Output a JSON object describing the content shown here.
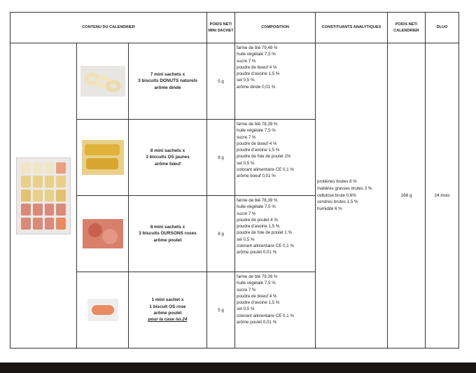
{
  "headers": {
    "contenu": "CONTENU DU CALENDRIER",
    "poids_sachet": "POIDS NET/ MINI SACHET",
    "composition": "COMPOSITION",
    "constituants": "CONSTITUANTS ANALYTIQUES",
    "poids_calendrier": "POIDS NET/ CALENDRIER",
    "dluo": "DLUO"
  },
  "rows": [
    {
      "l1": "7 mini sachets x",
      "l2": "3 biscuits DONUTS naturels",
      "l3": "arôme dinde",
      "note": "",
      "weight": "5 g",
      "composition": [
        "farine de blé 79,49 %",
        "huile végétale 7,5 %",
        "sucre 7 %",
        "poudre de boeuf 4 %",
        "poudre d'avoine 1,5 %",
        "sel 0,5 %",
        "arôme dinde 0,01 %"
      ]
    },
    {
      "l1": "8 mini sachets x",
      "l2": "3 biscuits OS jaunes",
      "l3": "arôme bœuf",
      "note": "",
      "weight": "8 g",
      "composition": [
        "farine de blé 78,39 %",
        "huile végétale 7,5 %",
        "sucre 7 %",
        "poudre de boeuf 4 %",
        "poudre d'avoine 1,5 %",
        "poudre de foie de poulet 1%",
        "sel 0,5 %",
        "colorant alimentaire CE 0,1 %",
        "arôme boeuf 0,01 %"
      ]
    },
    {
      "l1": "8 mini sachets x",
      "l2": "3 biscuits OURSONS roses",
      "l3": "arôme poulet",
      "note": "",
      "weight": "8 g",
      "composition": [
        "farine de blé 78,39 %",
        "huile végétale 7,5 %",
        "sucre 7 %",
        "poudre de poulet 4 %",
        "poudre d'avoine 1,5 %",
        "poudre de foie de poulet 1 %",
        "sel 0,5 %",
        "colorant alimentaire CE 0,1 %",
        "arôme poulet 0,01 %"
      ]
    },
    {
      "l1": "1 mini sachet x",
      "l2": "1 biscuit OS rose",
      "l3": "arôme poulet",
      "note": "pour la case no.24",
      "weight": "5 g",
      "composition": [
        "farine de blé 79,39 %",
        "huile végétale 7,5 %",
        "sucre 7 %",
        "poudre de boeuf 4 %",
        "poudre d'avoine 1,5 %",
        "sel 0,5 %",
        "colorant alimentaire CE 0,1 %",
        "arôme poulet 0,01 %"
      ]
    }
  ],
  "analytiques": [
    "protéines brutes 8 %",
    "matières grasses brutes 3 %",
    "cellulose brute 0,6%",
    "cendres brutes 1,5 %",
    "humidité 6 %"
  ],
  "poids_calendrier": "168 g",
  "dluo": "24 mois"
}
